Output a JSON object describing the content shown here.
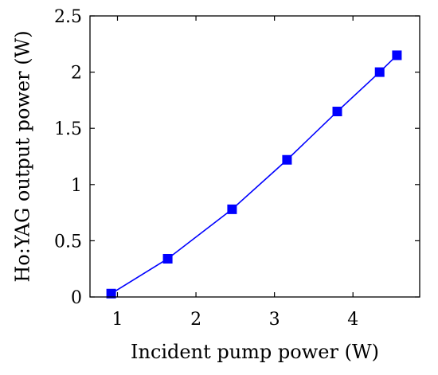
{
  "chart_data": {
    "type": "line",
    "xlabel": "Incident pump power (W)",
    "ylabel": "Ho:YAG output power (W)",
    "xlim": [
      0.65,
      4.85
    ],
    "ylim": [
      0,
      2.5
    ],
    "xticks": [
      1,
      2,
      3,
      4
    ],
    "yticks": [
      0,
      0.5,
      1,
      1.5,
      2,
      2.5
    ],
    "xtick_labels": [
      "1",
      "2",
      "3",
      "4"
    ],
    "ytick_labels": [
      "0",
      "0.5",
      "1",
      "1.5",
      "2",
      "2.5"
    ],
    "grid": false,
    "series": [
      {
        "color": "#0000ff",
        "marker": "square",
        "x": [
          0.92,
          1.64,
          2.46,
          3.16,
          3.8,
          4.34,
          4.56
        ],
        "y": [
          0.03,
          0.34,
          0.78,
          1.22,
          1.65,
          2.0,
          2.15
        ]
      }
    ]
  }
}
